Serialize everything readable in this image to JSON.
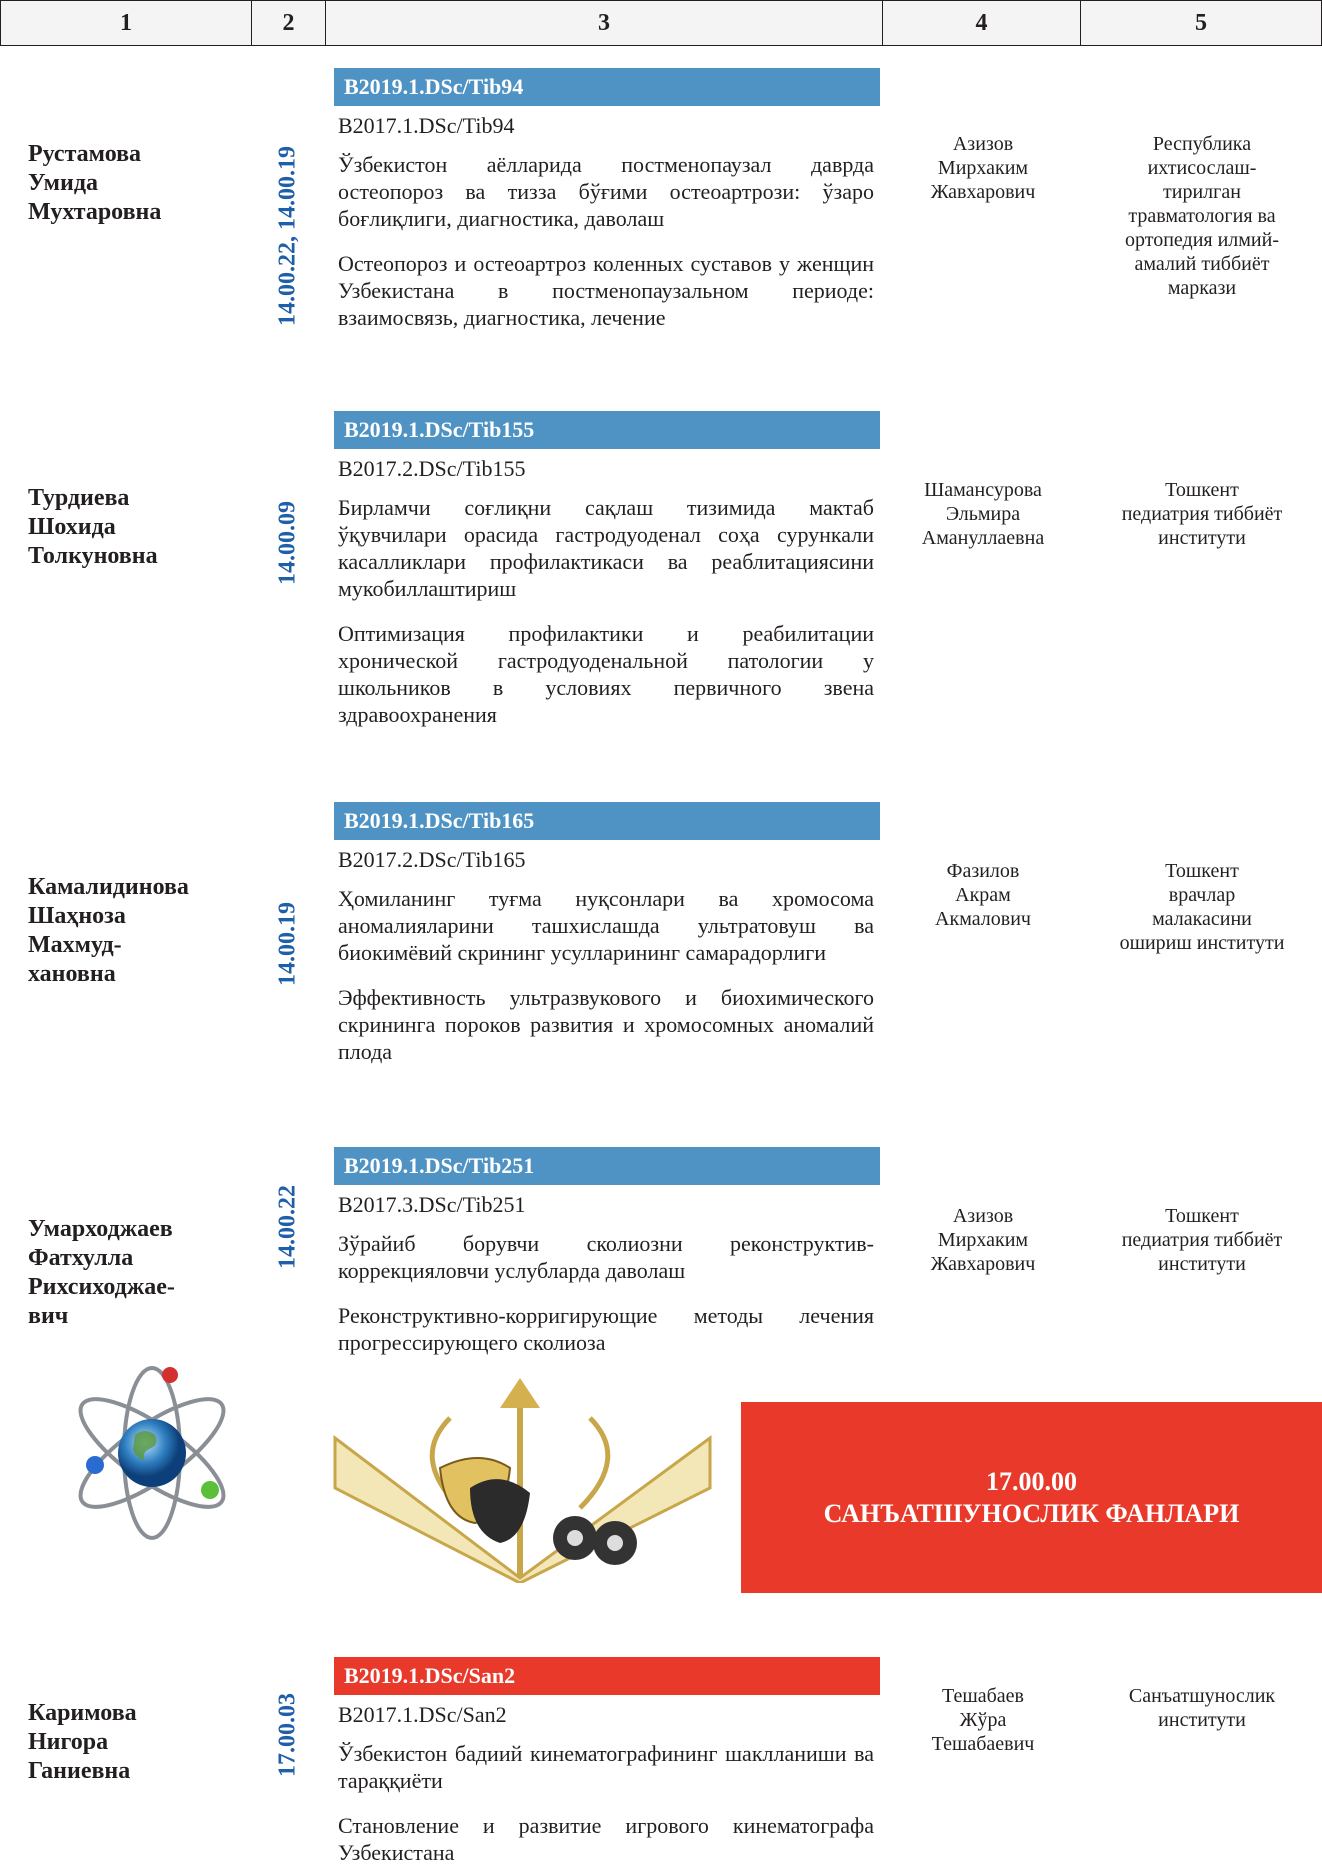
{
  "header": {
    "columns": [
      "1",
      "2",
      "3",
      "4",
      "5"
    ]
  },
  "entries": [
    {
      "name": [
        "Рустамова",
        "Умида",
        "Мухтаровна"
      ],
      "specialty": "14.00.22, 14.00.19",
      "code_new": "B2019.1.DSc/Tib94",
      "code_old": "B2017.1.DSc/Tib94",
      "title_uz": "Ўзбекистон аёлларида постменопаузал даврда остеопороз ва тизза бўғими остеоартрози: ўзаро боғлиқлиги, диагностика, даволаш",
      "title_ru": "Остеопороз и остеоартроз коленных суставов у женщин Узбекистана в постменопаузальном периоде: взаимосвязь, диагностика, лечение",
      "supervisor": [
        "Азизов",
        "Мирхаким",
        "Жавхарович"
      ],
      "institution": [
        "Республика",
        "ихтисослаш-",
        "тирилган",
        "травматология ва",
        "ортопедия илмий-",
        "амалий тиббиёт",
        "маркази"
      ]
    },
    {
      "name": [
        "Турдиева",
        "Шохида",
        "Толкуновна"
      ],
      "specialty": "14.00.09",
      "code_new": "B2019.1.DSc/Tib155",
      "code_old": "B2017.2.DSc/Tib155",
      "title_uz": "Бирламчи соғлиқни сақлаш тизимида мактаб ўқувчилари орасида гастродуоденал соҳа сурункали касалликлари профилактикаси ва реаблитациясини мукобиллаштириш",
      "title_ru": "Оптимизация профилактики и реабилитации хронической гастродуоденальной патологии у школьников в условиях первичного звена здравоохранения",
      "supervisor": [
        "Шамансурова",
        "Эльмира",
        "Амануллаевна"
      ],
      "institution": [
        "Тошкент",
        "педиатрия тиббиёт",
        "институти"
      ]
    },
    {
      "name": [
        "Камалидинова",
        "Шаҳноза",
        "Махмуд-",
        "хановна"
      ],
      "specialty": "14.00.19",
      "code_new": "B2019.1.DSc/Tib165",
      "code_old": "B2017.2.DSc/Tib165",
      "title_uz": "Ҳомиланинг туғма нуқсонлари ва хромосома аномалияларини ташхислашда ультратовуш ва биокимёвий скрининг усулларининг самарадорлиги",
      "title_ru": "Эффективность ультразвукового и биохимического скрининга пороков развития и хромосомных аномалий плода",
      "supervisor": [
        "Фазилов",
        "Акрам",
        "Акмалович"
      ],
      "institution": [
        "Тошкент",
        "врачлар",
        "малакасини",
        "ошириш институти"
      ]
    },
    {
      "name": [
        "Умарходжаев",
        "Фатхулла",
        "Рихсиходжае-",
        "вич"
      ],
      "specialty": "14.00.22",
      "code_new": "B2019.1.DSc/Tib251",
      "code_old": "B2017.3.DSc/Tib251",
      "title_uz": "Зўрайиб борувчи сколиозни реконструктив-коррекцияловчи услубларда даволаш",
      "title_ru": "Реконструктивно-корригирующие методы лечения прогрессирующего сколиоза",
      "supervisor": [
        "Азизов",
        "Мирхаким",
        "Жавхарович"
      ],
      "institution": [
        "Тошкент",
        "педиатрия тиббиёт",
        "институти"
      ]
    },
    {
      "name": [
        "Каримова",
        "Нигора",
        "Ганиевна"
      ],
      "specialty": "17.00.03",
      "code_new": "B2019.1.DSc/San2",
      "code_old": "B2017.1.DSc/San2",
      "title_uz": "Ўзбекистон бадиий кинематографининг шаклланиши ва тараққиёти",
      "title_ru": "Становление и развитие игрового кинематографа Узбекистана",
      "supervisor": [
        "Тешабаев",
        "Жўра",
        "Тешабаевич"
      ],
      "institution": [
        "Санъатшунослик",
        "институти"
      ]
    }
  ],
  "section": {
    "code": "17.00.00",
    "title": "САНЪАТШУНОСЛИК ФАНЛАРИ"
  }
}
